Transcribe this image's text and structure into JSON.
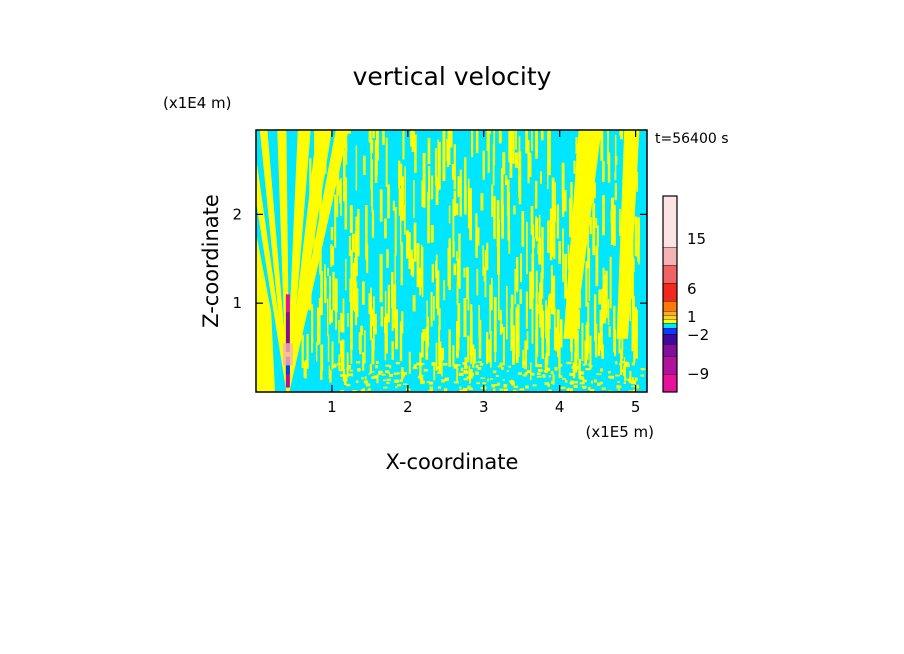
{
  "chart_data": {
    "type": "heatmap",
    "title": "vertical velocity",
    "xlabel": "X-coordinate",
    "ylabel": "Z-coordinate",
    "x_unit": "(x1E5 m)",
    "y_unit": "(x1E4 m)",
    "time_label": "t=56400 s",
    "xlim": [
      0,
      5.15
    ],
    "ylim": [
      0,
      2.95
    ],
    "x_ticks": [
      1,
      2,
      3,
      4,
      5
    ],
    "y_ticks": [
      1,
      2
    ],
    "field": {
      "background_level": "-2 to 0",
      "mountain_x": 0.42,
      "fan_left_edge_x_at_top": 0.0,
      "fan_right_edge_x_at_top": 1.25,
      "right_band_x_at_top": 4.6
    },
    "colorbar": {
      "colors": [
        "#e8129a",
        "#b0129c",
        "#80109c",
        "#3c0aa0",
        "#0a3aff",
        "#00e6ff",
        "#ffff00",
        "#ffd21e",
        "#ffaa28",
        "#ff780a",
        "#f0281e",
        "#ee6464",
        "#f5b4b4",
        "#fde4e4"
      ],
      "tick_labels": [
        {
          "label": "15",
          "level": 15
        },
        {
          "label": "6",
          "level": 6
        },
        {
          "label": "1",
          "level": 1
        },
        {
          "label": "−2",
          "level": -2
        },
        {
          "label": "−9",
          "level": -9
        }
      ]
    }
  }
}
